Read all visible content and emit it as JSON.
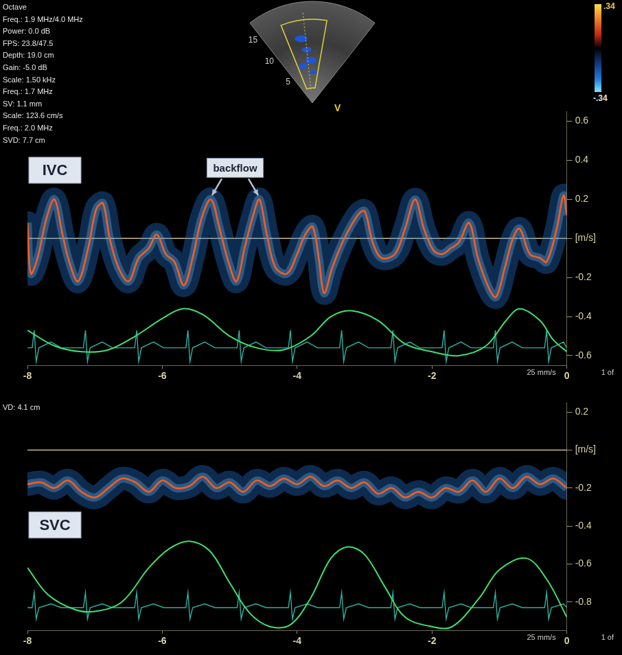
{
  "header": {
    "settings": [
      "Octave",
      "Freq.: 1.9 MHz/4.0 MHz",
      "Power: 0.0 dB",
      "FPS: 23.8/47.5",
      "Depth: 19.0 cm",
      "Gain: -5.0 dB",
      "Scale: 1.50 kHz",
      "Freq.: 1.7 MHz",
      "SV: 1.1 mm",
      "Scale: 123.6 cm/s",
      "Freq.: 2.0 MHz",
      "SVD: 7.7 cm"
    ],
    "sector": {
      "depth_ticks": [
        15,
        10,
        5
      ],
      "label": "V"
    },
    "color_bar": {
      "ticks": [
        {
          "value": 0.34,
          "label": ".34"
        },
        {
          "value": -0.34,
          "label": "-.34"
        }
      ]
    }
  },
  "chart_data": [
    {
      "type": "line",
      "title": "IVC",
      "xlim": [
        -8,
        0
      ],
      "xticks": [
        -8,
        -6,
        -4,
        -2,
        0
      ],
      "ylim": [
        -0.65,
        0.65
      ],
      "yticks": [
        0.6,
        0.4,
        0.2,
        {
          "value": 0,
          "label": "[m/s]"
        },
        -0.2,
        -0.4,
        -0.6
      ],
      "grid": false,
      "marker": "none",
      "annotations": [
        {
          "text": "backflow",
          "points": [
            [
              -5.28,
              0.2
            ],
            [
              -4.56,
              0.2
            ]
          ]
        }
      ],
      "speed_label": "25 mm/s",
      "page_label": "1 of",
      "series": [
        {
          "color": "#ff5a1a",
          "x": [
            -8.0,
            -7.95,
            -7.85,
            -7.72,
            -7.6,
            -7.48,
            -7.38,
            -7.25,
            -7.1,
            -6.98,
            -6.88,
            -6.78,
            -6.65,
            -6.5,
            -6.35,
            -6.2,
            -6.08,
            -5.95,
            -5.82,
            -5.68,
            -5.55,
            -5.42,
            -5.28,
            -5.15,
            -5.02,
            -4.9,
            -4.78,
            -4.65,
            -4.56,
            -4.45,
            -4.32,
            -4.15,
            -4.0,
            -3.88,
            -3.77,
            -3.68,
            -3.6,
            -3.48,
            -3.3,
            -3.1,
            -3.0,
            -2.88,
            -2.75,
            -2.55,
            -2.4,
            -2.25,
            -2.12,
            -1.98,
            -1.85,
            -1.72,
            -1.6,
            -1.45,
            -1.32,
            -1.15,
            -1.05,
            -0.92,
            -0.8,
            -0.7,
            -0.55,
            -0.4,
            -0.3,
            -0.15,
            -0.05,
            0.0
          ],
          "values": [
            0.08,
            -0.18,
            -0.1,
            0.1,
            0.2,
            0.02,
            -0.12,
            -0.22,
            -0.05,
            0.15,
            0.18,
            0.0,
            -0.15,
            -0.22,
            -0.1,
            -0.05,
            0.02,
            -0.08,
            -0.12,
            -0.24,
            -0.1,
            0.1,
            0.2,
            0.05,
            -0.12,
            -0.22,
            -0.05,
            0.12,
            0.2,
            0.02,
            -0.15,
            -0.18,
            -0.08,
            0.02,
            0.06,
            -0.1,
            -0.28,
            -0.15,
            0.0,
            0.12,
            0.14,
            -0.02,
            -0.1,
            -0.08,
            0.05,
            0.2,
            0.05,
            -0.06,
            -0.08,
            -0.05,
            -0.02,
            0.08,
            -0.1,
            -0.26,
            -0.3,
            -0.15,
            0.0,
            0.05,
            -0.08,
            -0.1,
            -0.12,
            0.05,
            0.22,
            0.12
          ]
        },
        {
          "color": "#3fe070",
          "x": [
            -8.0,
            -7.6,
            -7.2,
            -6.8,
            -6.4,
            -6.0,
            -5.7,
            -5.4,
            -5.0,
            -4.6,
            -4.2,
            -3.8,
            -3.5,
            -3.2,
            -2.8,
            -2.4,
            -2.0,
            -1.6,
            -1.2,
            -0.9,
            -0.7,
            -0.4,
            -0.2,
            0.0
          ],
          "values": [
            -0.47,
            -0.55,
            -0.58,
            -0.57,
            -0.5,
            -0.41,
            -0.36,
            -0.39,
            -0.5,
            -0.56,
            -0.57,
            -0.5,
            -0.4,
            -0.37,
            -0.42,
            -0.54,
            -0.58,
            -0.6,
            -0.55,
            -0.42,
            -0.36,
            -0.42,
            -0.52,
            -0.58
          ]
        },
        {
          "color": "#2fb0a0",
          "x": [
            -8.0,
            -7.93,
            -7.9,
            -7.87,
            -7.83,
            -7.65,
            -7.5,
            -7.17,
            -7.14,
            -7.11,
            -7.07,
            -6.89,
            -6.74,
            -6.41,
            -6.38,
            -6.35,
            -6.31,
            -6.13,
            -5.98,
            -5.65,
            -5.62,
            -5.59,
            -5.55,
            -5.37,
            -5.22,
            -4.89,
            -4.86,
            -4.83,
            -4.79,
            -4.61,
            -4.46,
            -4.13,
            -4.1,
            -4.07,
            -4.03,
            -3.85,
            -3.7,
            -3.37,
            -3.34,
            -3.31,
            -3.27,
            -3.09,
            -2.94,
            -2.61,
            -2.58,
            -2.55,
            -2.51,
            -2.33,
            -2.18,
            -1.85,
            -1.82,
            -1.79,
            -1.75,
            -1.57,
            -1.42,
            -1.09,
            -1.06,
            -1.03,
            -0.99,
            -0.81,
            -0.66,
            -0.33,
            -0.3,
            -0.27,
            -0.23,
            -0.05,
            0.0
          ],
          "values": [
            -0.56,
            -0.56,
            -0.47,
            -0.63,
            -0.56,
            -0.53,
            -0.56,
            -0.56,
            -0.47,
            -0.63,
            -0.56,
            -0.53,
            -0.56,
            -0.56,
            -0.47,
            -0.63,
            -0.56,
            -0.53,
            -0.56,
            -0.56,
            -0.47,
            -0.63,
            -0.56,
            -0.53,
            -0.56,
            -0.56,
            -0.47,
            -0.63,
            -0.56,
            -0.53,
            -0.56,
            -0.56,
            -0.47,
            -0.63,
            -0.56,
            -0.53,
            -0.56,
            -0.56,
            -0.47,
            -0.63,
            -0.56,
            -0.53,
            -0.56,
            -0.56,
            -0.47,
            -0.63,
            -0.56,
            -0.53,
            -0.56,
            -0.56,
            -0.47,
            -0.63,
            -0.56,
            -0.53,
            -0.56,
            -0.56,
            -0.47,
            -0.63,
            -0.56,
            -0.53,
            -0.56,
            -0.56,
            -0.47,
            -0.63,
            -0.56,
            -0.53,
            -0.56
          ]
        }
      ]
    },
    {
      "type": "line",
      "title": "SVC",
      "xlim": [
        -8,
        0
      ],
      "xticks": [
        -8,
        -6,
        -4,
        -2,
        0
      ],
      "ylim": [
        -0.95,
        0.25
      ],
      "yticks": [
        0.2,
        {
          "value": 0,
          "label": "[m/s]"
        },
        -0.2,
        -0.4,
        -0.6,
        -0.8
      ],
      "grid": false,
      "marker": "none",
      "corner_text": "VD: 4.1 cm",
      "speed_label": "25 mm/s",
      "page_label": "1 of",
      "series": [
        {
          "color": "#ff5a1a",
          "x": [
            -8.0,
            -7.8,
            -7.6,
            -7.4,
            -7.2,
            -7.0,
            -6.8,
            -6.6,
            -6.4,
            -6.2,
            -6.0,
            -5.8,
            -5.6,
            -5.4,
            -5.2,
            -5.0,
            -4.8,
            -4.6,
            -4.4,
            -4.2,
            -4.0,
            -3.8,
            -3.6,
            -3.4,
            -3.2,
            -3.0,
            -2.8,
            -2.6,
            -2.4,
            -2.2,
            -2.0,
            -1.8,
            -1.6,
            -1.4,
            -1.2,
            -1.0,
            -0.8,
            -0.6,
            -0.4,
            -0.2,
            0.0
          ],
          "values": [
            -0.18,
            -0.17,
            -0.2,
            -0.16,
            -0.22,
            -0.25,
            -0.2,
            -0.15,
            -0.17,
            -0.22,
            -0.16,
            -0.2,
            -0.19,
            -0.14,
            -0.2,
            -0.17,
            -0.22,
            -0.16,
            -0.19,
            -0.15,
            -0.18,
            -0.14,
            -0.19,
            -0.16,
            -0.2,
            -0.17,
            -0.23,
            -0.2,
            -0.25,
            -0.22,
            -0.25,
            -0.2,
            -0.22,
            -0.16,
            -0.22,
            -0.15,
            -0.2,
            -0.14,
            -0.18,
            -0.15,
            -0.2
          ]
        },
        {
          "color": "#3fe070",
          "x": [
            -8.0,
            -7.7,
            -7.3,
            -7.0,
            -6.6,
            -6.2,
            -5.9,
            -5.6,
            -5.3,
            -5.0,
            -4.7,
            -4.4,
            -4.1,
            -3.8,
            -3.5,
            -3.25,
            -3.0,
            -2.7,
            -2.4,
            -2.0,
            -1.7,
            -1.3,
            -1.0,
            -0.6,
            -0.3,
            0.0
          ],
          "values": [
            -0.62,
            -0.76,
            -0.84,
            -0.85,
            -0.8,
            -0.62,
            -0.52,
            -0.48,
            -0.53,
            -0.7,
            -0.86,
            -0.93,
            -0.92,
            -0.78,
            -0.57,
            -0.51,
            -0.55,
            -0.72,
            -0.88,
            -0.93,
            -0.93,
            -0.78,
            -0.63,
            -0.57,
            -0.68,
            -0.88
          ]
        },
        {
          "color": "#2fb0a0",
          "x": [
            -8.0,
            -7.93,
            -7.9,
            -7.87,
            -7.83,
            -7.65,
            -7.5,
            -7.17,
            -7.14,
            -7.11,
            -7.07,
            -6.89,
            -6.74,
            -6.41,
            -6.38,
            -6.35,
            -6.31,
            -6.13,
            -5.98,
            -5.65,
            -5.62,
            -5.59,
            -5.55,
            -5.37,
            -5.22,
            -4.89,
            -4.86,
            -4.83,
            -4.79,
            -4.61,
            -4.46,
            -4.13,
            -4.1,
            -4.07,
            -4.03,
            -3.85,
            -3.7,
            -3.37,
            -3.34,
            -3.31,
            -3.27,
            -3.09,
            -2.94,
            -2.61,
            -2.58,
            -2.55,
            -2.51,
            -2.33,
            -2.18,
            -1.85,
            -1.82,
            -1.79,
            -1.75,
            -1.57,
            -1.42,
            -1.09,
            -1.06,
            -1.03,
            -0.99,
            -0.81,
            -0.66,
            -0.33,
            -0.3,
            -0.27,
            -0.23,
            -0.05,
            0.0
          ],
          "values": [
            -0.83,
            -0.83,
            -0.75,
            -0.89,
            -0.83,
            -0.81,
            -0.83,
            -0.83,
            -0.75,
            -0.89,
            -0.83,
            -0.81,
            -0.83,
            -0.83,
            -0.75,
            -0.89,
            -0.83,
            -0.81,
            -0.83,
            -0.83,
            -0.75,
            -0.89,
            -0.83,
            -0.81,
            -0.83,
            -0.83,
            -0.75,
            -0.89,
            -0.83,
            -0.81,
            -0.83,
            -0.83,
            -0.75,
            -0.89,
            -0.83,
            -0.81,
            -0.83,
            -0.83,
            -0.75,
            -0.89,
            -0.83,
            -0.81,
            -0.83,
            -0.83,
            -0.75,
            -0.89,
            -0.83,
            -0.81,
            -0.83,
            -0.83,
            -0.75,
            -0.89,
            -0.83,
            -0.81,
            -0.83,
            -0.83,
            -0.75,
            -0.89,
            -0.83,
            -0.81,
            -0.83,
            -0.83,
            -0.75,
            -0.89,
            -0.83,
            -0.81,
            -0.83
          ]
        }
      ]
    }
  ]
}
